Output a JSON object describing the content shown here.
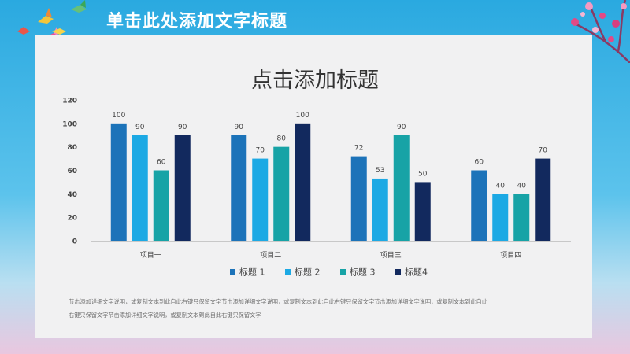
{
  "header": {
    "title": "单击此处添加文字标题"
  },
  "chart_data": {
    "type": "bar",
    "title": "点击添加标题",
    "categories": [
      "项目一",
      "项目二",
      "项目三",
      "项目四"
    ],
    "series": [
      {
        "name": "标题 1",
        "color": "#1c73b9",
        "values": [
          100,
          90,
          72,
          60
        ]
      },
      {
        "name": "标题 2",
        "color": "#1ca9e4",
        "values": [
          90,
          70,
          53,
          40
        ]
      },
      {
        "name": "标题 3",
        "color": "#17a3a6",
        "values": [
          60,
          80,
          90,
          40
        ]
      },
      {
        "name": "标题4",
        "color": "#12295e",
        "values": [
          90,
          100,
          50,
          70
        ]
      }
    ],
    "ylim": [
      0,
      120
    ],
    "yticks": [
      "0",
      "20",
      "40",
      "60",
      "80",
      "100",
      "120"
    ],
    "grid": false,
    "legend_position": "bottom"
  },
  "footer": {
    "line1": "节击添加详细文字说明，或复制文本到此自此右键只保留文字节击添加详细文字说明，或复制文本到此自此右键只保留文字节击添加详细文字说明，或复制文本到此自此",
    "line2": "右键只保留文字节击添加详细文字说明，或复制文本到此自此右键只保留文字"
  }
}
